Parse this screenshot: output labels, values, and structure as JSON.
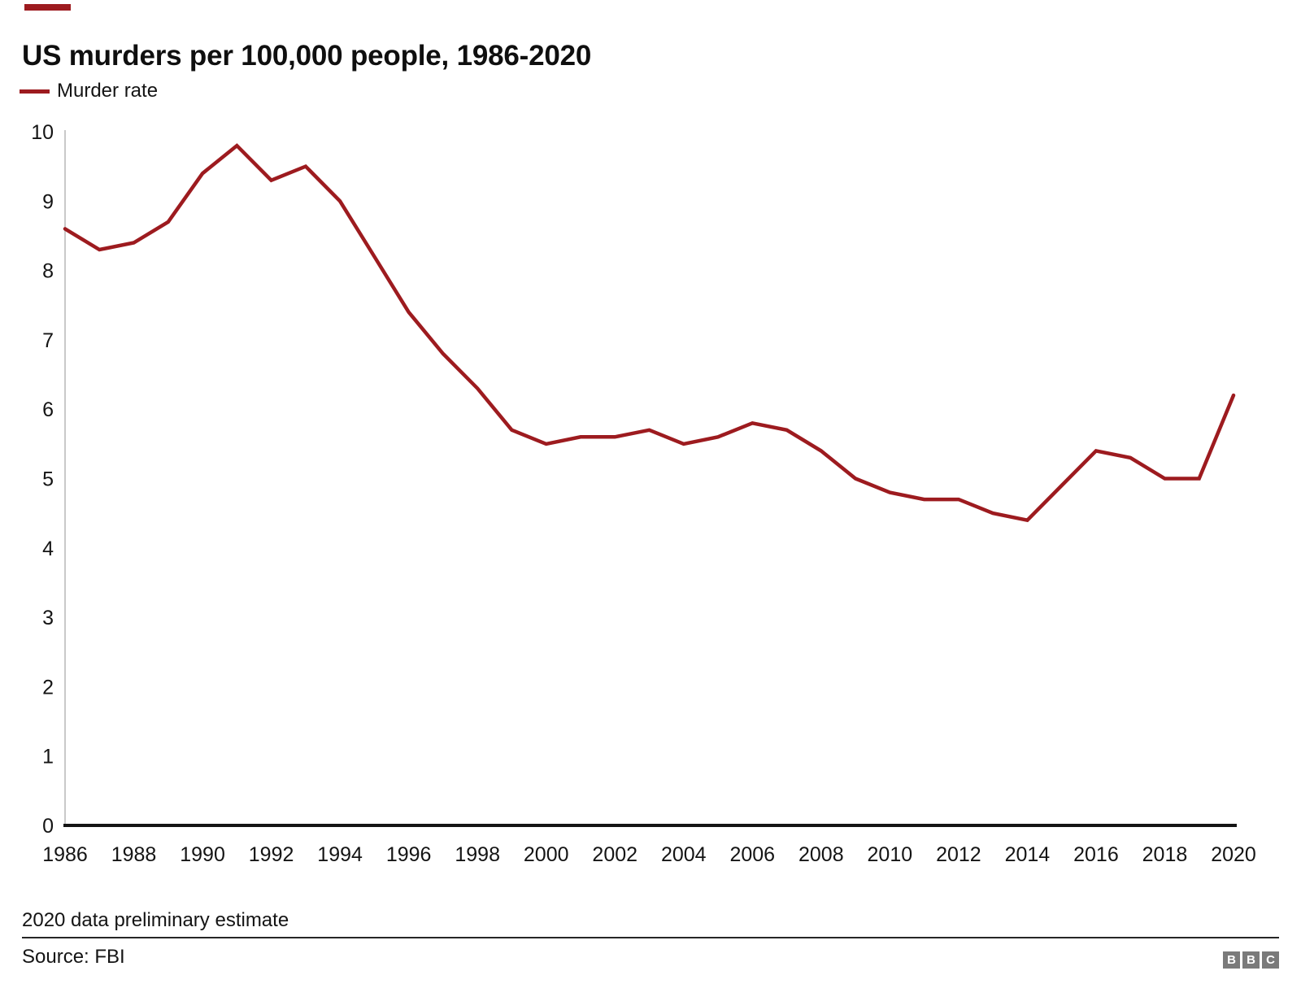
{
  "header": {
    "title": "US murders per 100,000 people, 1986-2020"
  },
  "legend": {
    "label": "Murder rate"
  },
  "footer": {
    "footnote": "2020 data preliminary estimate",
    "source": "Source: FBI",
    "logo_letters": [
      "B",
      "B",
      "C"
    ]
  },
  "colors": {
    "line": "#9d1b1f",
    "axis": "#141414",
    "y_axis_line": "#c9c9c9",
    "tick_text": "#141414",
    "logo_gray": "#7a7a7a"
  },
  "chart_data": {
    "type": "line",
    "title": "US murders per 100,000 people, 1986-2020",
    "xlabel": "",
    "ylabel": "",
    "xlim": [
      1986,
      2020
    ],
    "ylim": [
      0,
      10
    ],
    "grid": false,
    "legend_position": "top-left",
    "xticks": [
      1986,
      1988,
      1990,
      1992,
      1994,
      1996,
      1998,
      2000,
      2002,
      2004,
      2006,
      2008,
      2010,
      2012,
      2014,
      2016,
      2018,
      2020
    ],
    "yticks": [
      0,
      1,
      2,
      3,
      4,
      5,
      6,
      7,
      8,
      9,
      10
    ],
    "x": [
      1986,
      1987,
      1988,
      1989,
      1990,
      1991,
      1992,
      1993,
      1994,
      1995,
      1996,
      1997,
      1998,
      1999,
      2000,
      2001,
      2002,
      2003,
      2004,
      2005,
      2006,
      2007,
      2008,
      2009,
      2010,
      2011,
      2012,
      2013,
      2014,
      2015,
      2016,
      2017,
      2018,
      2019,
      2020
    ],
    "series": [
      {
        "name": "Murder rate",
        "color": "#9d1b1f",
        "values": [
          8.6,
          8.3,
          8.4,
          8.7,
          9.4,
          9.8,
          9.3,
          9.5,
          9.0,
          8.2,
          7.4,
          6.8,
          6.3,
          5.7,
          5.5,
          5.6,
          5.6,
          5.7,
          5.5,
          5.6,
          5.8,
          5.7,
          5.4,
          5.0,
          4.8,
          4.7,
          4.7,
          4.5,
          4.4,
          4.9,
          5.4,
          5.3,
          5.0,
          5.0,
          6.2
        ]
      }
    ],
    "annotations": [
      "2020 data preliminary estimate"
    ]
  }
}
